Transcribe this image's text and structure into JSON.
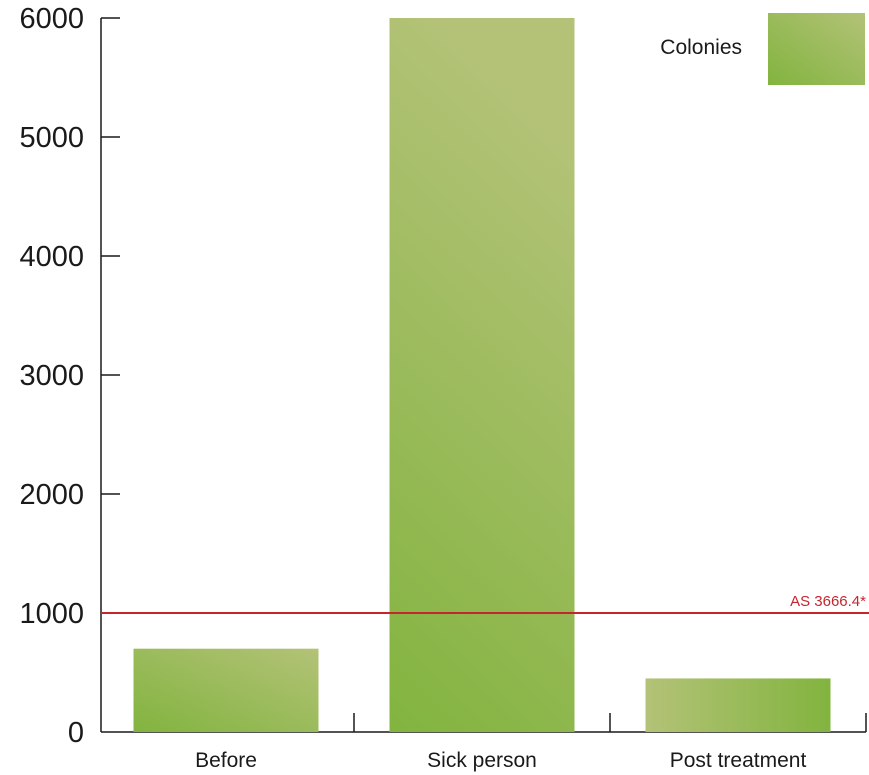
{
  "chart_data": {
    "type": "bar",
    "categories": [
      "Before",
      "Sick person",
      "Post treatment"
    ],
    "series": [
      {
        "name": "Colonies",
        "values": [
          700,
          6000,
          450
        ]
      }
    ],
    "y_ticks": [
      "0",
      "1000",
      "2000",
      "3000",
      "4000",
      "5000",
      "6000"
    ],
    "ylim": [
      0,
      6000
    ],
    "reference_line": {
      "value": 1000,
      "label": "AS 3666.4*",
      "color": "#c4262e"
    },
    "legend": {
      "position": "top-right"
    },
    "colors": {
      "bar_light": "#b3c277",
      "bar_dark": "#82b43f",
      "axis": "#1a1a1a"
    },
    "grid": false
  }
}
